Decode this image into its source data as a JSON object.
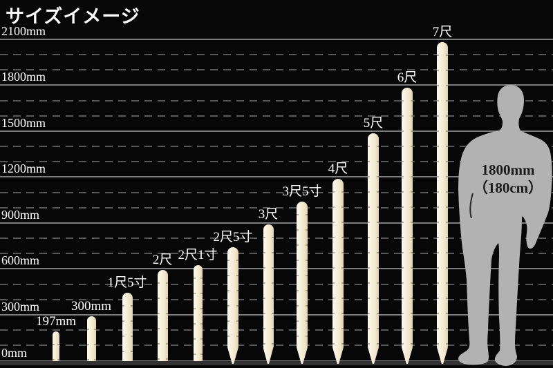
{
  "title": "サイズイメージ",
  "colors": {
    "background": "#070707",
    "stake_light": "#fffbf0",
    "stake_base": "#f6efd9",
    "stake_dark": "#e2d3ab",
    "grid_solid": "#7e7e7e",
    "grid_dashed": "#585858",
    "person": "#b2b2b2",
    "person_text": "#1a1a1a",
    "label_text": "#ffffff"
  },
  "chart_data": {
    "type": "bar",
    "title": "サイズイメージ",
    "categories": [
      "197mm",
      "300mm",
      "1尺5寸",
      "2尺",
      "2尺1寸",
      "2尺5寸",
      "3尺",
      "3尺5寸",
      "4尺",
      "5尺",
      "6尺",
      "7尺"
    ],
    "values": [
      197,
      300,
      455,
      606,
      636,
      758,
      909,
      1061,
      1212,
      1515,
      1818,
      2121
    ],
    "value_unit": "mm",
    "xlabel": "",
    "ylabel": "",
    "ylim": [
      0,
      2100
    ],
    "y_major_ticks": [
      {
        "value": 0,
        "label": "0mm"
      },
      {
        "value": 300,
        "label": "300mm"
      },
      {
        "value": 600,
        "label": "600mm"
      },
      {
        "value": 900,
        "label": "900mm"
      },
      {
        "value": 1200,
        "label": "1200mm"
      },
      {
        "value": 1500,
        "label": "1500mm"
      },
      {
        "value": 1800,
        "label": "1800mm"
      },
      {
        "value": 2100,
        "label": "2100mm"
      }
    ],
    "y_minor_tick_interval": 100,
    "grid": "solid gray line every 300mm, dashed gray line every 100mm",
    "legend": "none",
    "annotation": "gray human silhouette for scale, 1800mm (180cm) tall"
  },
  "person": {
    "height_mm": 1800,
    "label_line1": "1800mm",
    "label_line2": "（180cm）"
  }
}
